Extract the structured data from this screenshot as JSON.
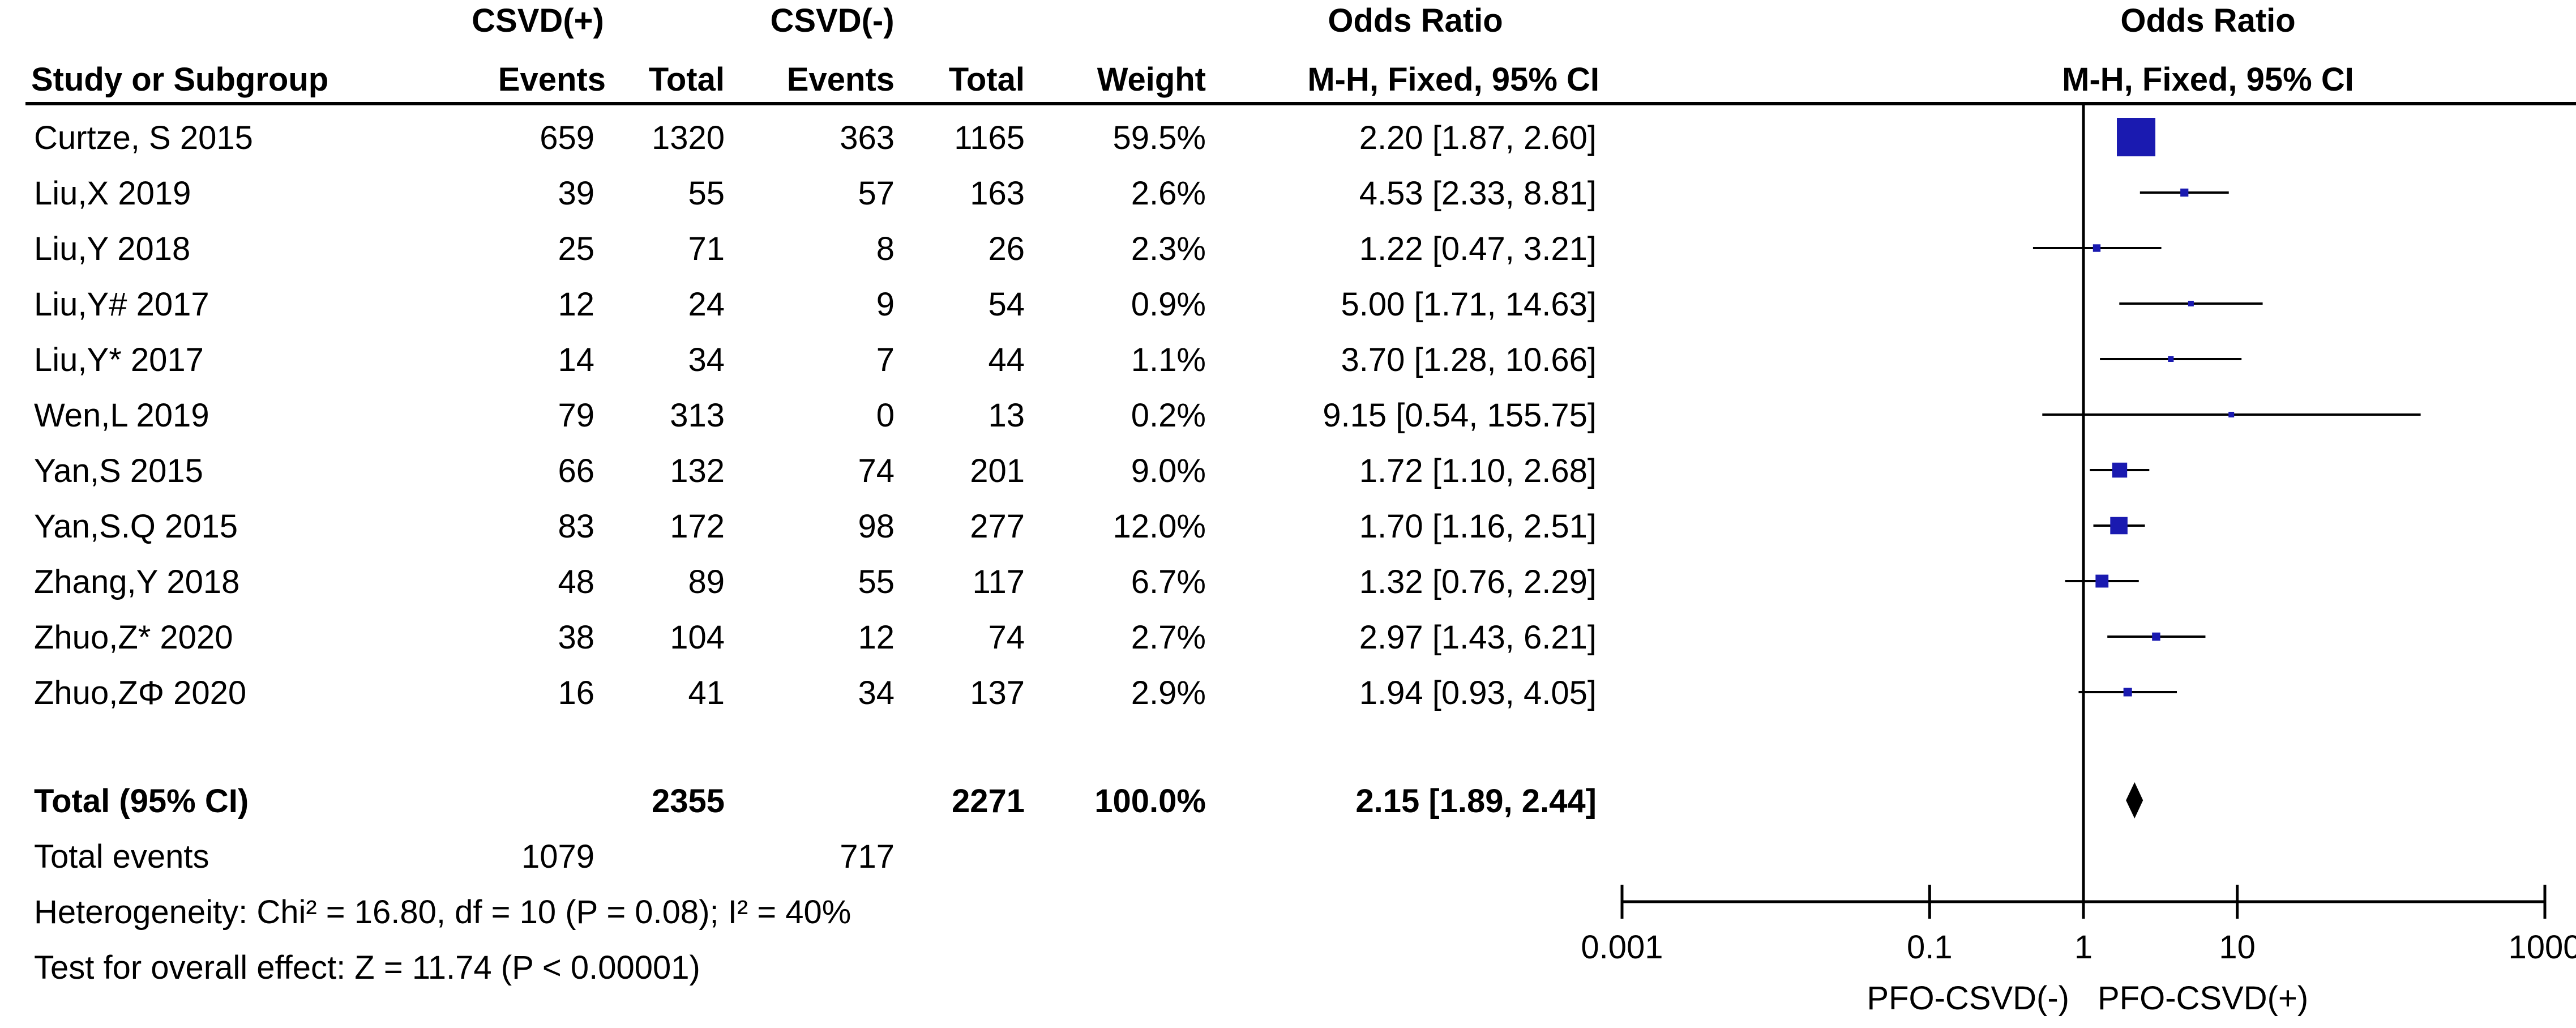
{
  "header": {
    "group1": "CSVD(+)",
    "group2": "CSVD(-)",
    "or_table": "Odds Ratio",
    "or_plot": "Odds Ratio",
    "study": "Study or Subgroup",
    "events1": "Events",
    "total1": "Total",
    "events2": "Events",
    "total2": "Total",
    "weight": "Weight",
    "method_table": "M-H, Fixed, 95% CI",
    "method_plot": "M-H, Fixed, 95% CI"
  },
  "studies": [
    {
      "name": "Curtze, S 2015",
      "e1": "659",
      "t1": "1320",
      "e2": "363",
      "t2": "1165",
      "weight": "59.5%",
      "ci": "2.20 [1.87, 2.60]"
    },
    {
      "name": "Liu,X 2019",
      "e1": "39",
      "t1": "55",
      "e2": "57",
      "t2": "163",
      "weight": "2.6%",
      "ci": "4.53 [2.33, 8.81]"
    },
    {
      "name": "Liu,Y 2018",
      "e1": "25",
      "t1": "71",
      "e2": "8",
      "t2": "26",
      "weight": "2.3%",
      "ci": "1.22 [0.47, 3.21]"
    },
    {
      "name": "Liu,Y# 2017",
      "e1": "12",
      "t1": "24",
      "e2": "9",
      "t2": "54",
      "weight": "0.9%",
      "ci": "5.00 [1.71, 14.63]"
    },
    {
      "name": "Liu,Y* 2017",
      "e1": "14",
      "t1": "34",
      "e2": "7",
      "t2": "44",
      "weight": "1.1%",
      "ci": "3.70 [1.28, 10.66]"
    },
    {
      "name": "Wen,L 2019",
      "e1": "79",
      "t1": "313",
      "e2": "0",
      "t2": "13",
      "weight": "0.2%",
      "ci": "9.15 [0.54, 155.75]"
    },
    {
      "name": "Yan,S 2015",
      "e1": "66",
      "t1": "132",
      "e2": "74",
      "t2": "201",
      "weight": "9.0%",
      "ci": "1.72 [1.10, 2.68]"
    },
    {
      "name": "Yan,S.Q 2015",
      "e1": "83",
      "t1": "172",
      "e2": "98",
      "t2": "277",
      "weight": "12.0%",
      "ci": "1.70 [1.16, 2.51]"
    },
    {
      "name": "Zhang,Y 2018",
      "e1": "48",
      "t1": "89",
      "e2": "55",
      "t2": "117",
      "weight": "6.7%",
      "ci": "1.32 [0.76, 2.29]"
    },
    {
      "name": "Zhuo,Z* 2020",
      "e1": "38",
      "t1": "104",
      "e2": "12",
      "t2": "74",
      "weight": "2.7%",
      "ci": "2.97 [1.43, 6.21]"
    },
    {
      "name": "Zhuo,ZΦ 2020",
      "e1": "16",
      "t1": "41",
      "e2": "34",
      "t2": "137",
      "weight": "2.9%",
      "ci": "1.94 [0.93, 4.05]"
    }
  ],
  "total": {
    "label": "Total (95% CI)",
    "t1": "2355",
    "t2": "2271",
    "weight": "100.0%",
    "ci": "2.15 [1.89, 2.44]"
  },
  "total_events": {
    "label": "Total events",
    "e1": "1079",
    "e2": "717"
  },
  "heterogeneity": "Heterogeneity: Chi² = 16.80, df = 10 (P = 0.08); I² = 40%",
  "overall_effect": "Test for overall effect: Z = 11.74 (P < 0.00001)",
  "axis": {
    "ticks": [
      "0.001",
      "0.1",
      "1",
      "10",
      "1000"
    ],
    "favours_left": "PFO-CSVD(-)",
    "favours_right": "PFO-CSVD(+)"
  },
  "colors": {
    "marker": "#1a1ab0",
    "line": "#000000"
  },
  "chart_data": {
    "type": "forest",
    "scale": "log",
    "xlim": [
      0.001,
      1000
    ],
    "xticks": [
      0.001,
      0.1,
      1,
      10,
      1000
    ],
    "null_line": 1,
    "studies": [
      {
        "name": "Curtze, S 2015",
        "or": 2.2,
        "lo": 1.87,
        "hi": 2.6,
        "weight": 59.5
      },
      {
        "name": "Liu,X 2019",
        "or": 4.53,
        "lo": 2.33,
        "hi": 8.81,
        "weight": 2.6
      },
      {
        "name": "Liu,Y 2018",
        "or": 1.22,
        "lo": 0.47,
        "hi": 3.21,
        "weight": 2.3
      },
      {
        "name": "Liu,Y# 2017",
        "or": 5.0,
        "lo": 1.71,
        "hi": 14.63,
        "weight": 0.9
      },
      {
        "name": "Liu,Y* 2017",
        "or": 3.7,
        "lo": 1.28,
        "hi": 10.66,
        "weight": 1.1
      },
      {
        "name": "Wen,L 2019",
        "or": 9.15,
        "lo": 0.54,
        "hi": 155.75,
        "weight": 0.2
      },
      {
        "name": "Yan,S 2015",
        "or": 1.72,
        "lo": 1.1,
        "hi": 2.68,
        "weight": 9.0
      },
      {
        "name": "Yan,S.Q 2015",
        "or": 1.7,
        "lo": 1.16,
        "hi": 2.51,
        "weight": 12.0
      },
      {
        "name": "Zhang,Y 2018",
        "or": 1.32,
        "lo": 0.76,
        "hi": 2.29,
        "weight": 6.7
      },
      {
        "name": "Zhuo,Z* 2020",
        "or": 2.97,
        "lo": 1.43,
        "hi": 6.21,
        "weight": 2.7
      },
      {
        "name": "Zhuo,ZΦ 2020",
        "or": 1.94,
        "lo": 0.93,
        "hi": 4.05,
        "weight": 2.9
      }
    ],
    "pooled": {
      "or": 2.15,
      "lo": 1.89,
      "hi": 2.44
    }
  }
}
